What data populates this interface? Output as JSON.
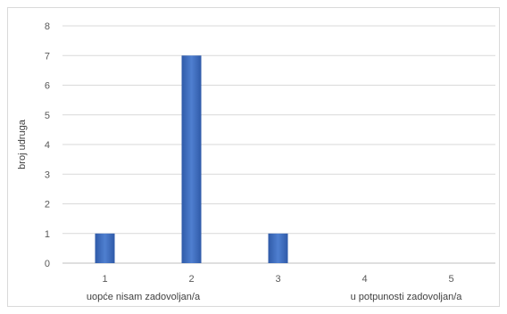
{
  "chart_data": {
    "type": "bar",
    "categories": [
      "1",
      "2",
      "3",
      "4",
      "5"
    ],
    "values": [
      1,
      7,
      1,
      0,
      0
    ],
    "title": "",
    "xlabel": "",
    "ylabel": "broj udruga",
    "ylim": [
      0,
      8
    ],
    "yticks": [
      0,
      1,
      2,
      3,
      4,
      5,
      6,
      7,
      8
    ],
    "grid": true,
    "legend": "none",
    "annotations": {
      "left": "uopće nisam zadovoljan/a",
      "right": "u potpunosti zadovoljan/a"
    },
    "colors": {
      "bar": "#4472c4",
      "bar_dark": "#2f5aa8",
      "grid": "#d9d9d9",
      "axis": "#bfbfbf"
    }
  }
}
